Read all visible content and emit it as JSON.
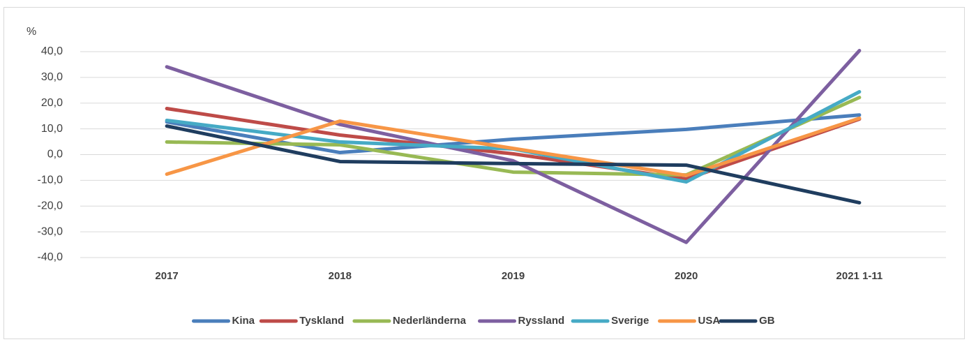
{
  "chart_data": {
    "type": "line",
    "ylabel": "%",
    "categories": [
      "2017",
      "2018",
      "2019",
      "2020",
      "2021 1-11"
    ],
    "ylim": [
      -40,
      40
    ],
    "yticks": [
      {
        "value": -40,
        "label": "-40,0"
      },
      {
        "value": -30,
        "label": "-30,0"
      },
      {
        "value": -20,
        "label": "-20,0"
      },
      {
        "value": -10,
        "label": "-10,0"
      },
      {
        "value": 0,
        "label": "0,0"
      },
      {
        "value": 10,
        "label": "10,0"
      },
      {
        "value": 20,
        "label": "20,0"
      },
      {
        "value": 30,
        "label": "30,0"
      },
      {
        "value": 40,
        "label": "40,0"
      }
    ],
    "grid": true,
    "legend": "bottom",
    "series": [
      {
        "name": "Kina",
        "color": "#4a7ebb",
        "values": [
          12.7,
          0.8,
          6.0,
          9.8,
          15.4
        ]
      },
      {
        "name": "Tyskland",
        "color": "#be4b48",
        "values": [
          17.9,
          7.6,
          0.3,
          -9.5,
          13.8
        ]
      },
      {
        "name": "Nederländerna",
        "color": "#98b954",
        "values": [
          4.9,
          3.8,
          -6.8,
          -7.9,
          22.2
        ]
      },
      {
        "name": "Ryssland",
        "color": "#7d5fa0",
        "values": [
          34.1,
          11.7,
          -2.4,
          -34.1,
          40.4
        ]
      },
      {
        "name": "Sverige",
        "color": "#46aac5",
        "values": [
          13.3,
          4.9,
          2.2,
          -10.6,
          24.4
        ]
      },
      {
        "name": "USA",
        "color": "#f79646",
        "values": [
          -7.6,
          13.0,
          2.4,
          -8.1,
          14.1
        ]
      },
      {
        "name": "GB",
        "color": "#1f3d5f",
        "values": [
          11.1,
          -2.7,
          -3.5,
          -4.1,
          -18.7
        ]
      }
    ]
  }
}
